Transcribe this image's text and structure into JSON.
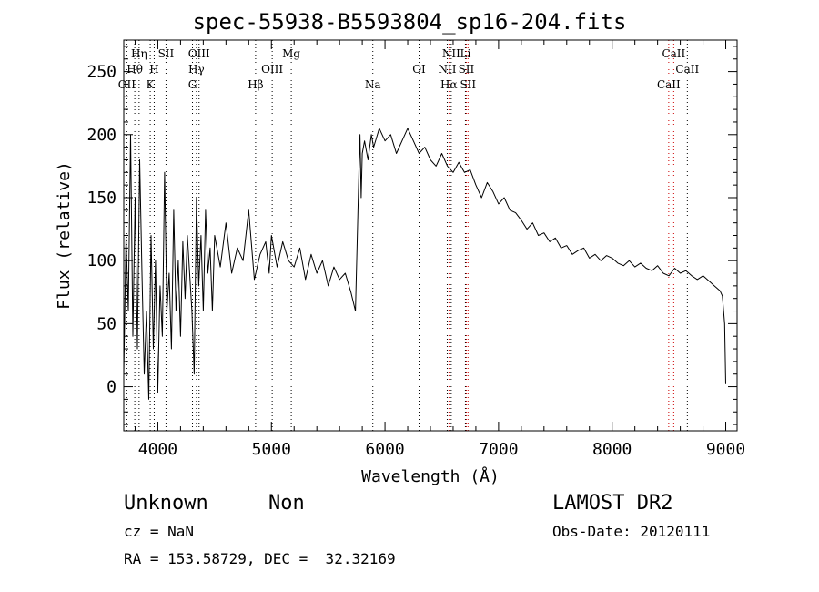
{
  "chart_data": {
    "type": "line",
    "title": "spec-55938-B5593804_sp16-204.fits",
    "xlabel": "Wavelength (Å)",
    "ylabel": "Flux (relative)",
    "xlim": [
      3700,
      9100
    ],
    "ylim": [
      -35,
      275
    ],
    "x_ticks": [
      4000,
      5000,
      6000,
      7000,
      8000,
      9000
    ],
    "y_ticks": [
      0,
      50,
      100,
      150,
      200,
      250
    ],
    "grid": false,
    "series": [
      {
        "x": [
          3700,
          3720,
          3740,
          3760,
          3780,
          3800,
          3820,
          3840,
          3860,
          3880,
          3900,
          3920,
          3940,
          3960,
          3980,
          4000,
          4020,
          4040,
          4060,
          4080,
          4100,
          4120,
          4140,
          4160,
          4180,
          4200,
          4220,
          4240,
          4260,
          4280,
          4300,
          4320,
          4340,
          4360,
          4380,
          4400,
          4420,
          4440,
          4460,
          4480,
          4500,
          4550,
          4600,
          4650,
          4700,
          4750,
          4800,
          4850,
          4900,
          4950,
          4980,
          5000,
          5050,
          5100,
          5150,
          5200,
          5250,
          5300,
          5350,
          5400,
          5450,
          5500,
          5550,
          5600,
          5650,
          5700,
          5740,
          5770,
          5780,
          5790,
          5800,
          5820,
          5850,
          5880,
          5900,
          5950,
          6000,
          6050,
          6100,
          6150,
          6200,
          6250,
          6300,
          6350,
          6400,
          6450,
          6500,
          6550,
          6600,
          6650,
          6700,
          6750,
          6800,
          6850,
          6900,
          6950,
          7000,
          7050,
          7100,
          7150,
          7200,
          7250,
          7300,
          7350,
          7400,
          7450,
          7500,
          7550,
          7600,
          7650,
          7700,
          7750,
          7800,
          7850,
          7900,
          7950,
          8000,
          8050,
          8100,
          8150,
          8200,
          8250,
          8300,
          8350,
          8400,
          8450,
          8500,
          8550,
          8600,
          8650,
          8700,
          8750,
          8800,
          8850,
          8900,
          8950,
          8970,
          8990,
          9000
        ],
        "y": [
          10,
          120,
          60,
          200,
          40,
          150,
          30,
          180,
          90,
          10,
          60,
          -10,
          120,
          30,
          100,
          -5,
          80,
          40,
          170,
          60,
          90,
          30,
          140,
          60,
          100,
          40,
          115,
          70,
          120,
          90,
          60,
          10,
          150,
          80,
          120,
          60,
          140,
          90,
          110,
          60,
          120,
          95,
          130,
          90,
          110,
          100,
          140,
          85,
          105,
          115,
          90,
          120,
          95,
          115,
          100,
          95,
          110,
          85,
          105,
          90,
          100,
          80,
          95,
          85,
          90,
          75,
          60,
          170,
          200,
          150,
          185,
          195,
          180,
          200,
          190,
          205,
          195,
          200,
          185,
          195,
          205,
          195,
          185,
          190,
          180,
          175,
          185,
          175,
          170,
          178,
          170,
          172,
          160,
          150,
          162,
          155,
          145,
          150,
          140,
          138,
          132,
          125,
          130,
          120,
          122,
          115,
          118,
          110,
          112,
          105,
          108,
          110,
          102,
          105,
          100,
          104,
          102,
          98,
          96,
          100,
          95,
          98,
          94,
          92,
          96,
          90,
          88,
          94,
          90,
          92,
          88,
          85,
          88,
          84,
          80,
          76,
          72,
          50,
          2
        ]
      }
    ],
    "line_labels": [
      {
        "text": "OII",
        "x": 3727,
        "row": 3
      },
      {
        "text": "Hη",
        "x": 3835,
        "row": 1
      },
      {
        "text": "Hθ",
        "x": 3797,
        "row": 2
      },
      {
        "text": "H",
        "x": 3968,
        "row": 2
      },
      {
        "text": "K",
        "x": 3933,
        "row": 3
      },
      {
        "text": "SII",
        "x": 4072,
        "row": 1
      },
      {
        "text": "OIII",
        "x": 4363,
        "row": 1
      },
      {
        "text": "Hγ",
        "x": 4340,
        "row": 2
      },
      {
        "text": "G",
        "x": 4305,
        "row": 3
      },
      {
        "text": "Hβ",
        "x": 4861,
        "row": 3
      },
      {
        "text": "OIII",
        "x": 5007,
        "row": 2
      },
      {
        "text": "Mg",
        "x": 5175,
        "row": 1
      },
      {
        "text": "Na",
        "x": 5893,
        "row": 3
      },
      {
        "text": "OI",
        "x": 6300,
        "row": 2
      },
      {
        "text": "NII",
        "x": 6583,
        "row": 1
      },
      {
        "text": "Li",
        "x": 6708,
        "row": 1
      },
      {
        "text": "NII",
        "x": 6548,
        "row": 2
      },
      {
        "text": "SII",
        "x": 6716,
        "row": 2
      },
      {
        "text": "Hα",
        "x": 6563,
        "row": 3
      },
      {
        "text": "SII",
        "x": 6731,
        "row": 3
      },
      {
        "text": "CaII",
        "x": 8542,
        "row": 1
      },
      {
        "text": "CaII",
        "x": 8662,
        "row": 2
      },
      {
        "text": "CaII",
        "x": 8498,
        "row": 3
      }
    ],
    "line_markers": [
      {
        "x": 3727,
        "color": "#000000"
      },
      {
        "x": 3797,
        "color": "#000000"
      },
      {
        "x": 3835,
        "color": "#000000"
      },
      {
        "x": 3933,
        "color": "#000000"
      },
      {
        "x": 3968,
        "color": "#000000"
      },
      {
        "x": 4072,
        "color": "#000000"
      },
      {
        "x": 4305,
        "color": "#000000"
      },
      {
        "x": 4340,
        "color": "#000000"
      },
      {
        "x": 4363,
        "color": "#000000"
      },
      {
        "x": 4861,
        "color": "#000000"
      },
      {
        "x": 5007,
        "color": "#000000"
      },
      {
        "x": 5175,
        "color": "#000000"
      },
      {
        "x": 5893,
        "color": "#000000"
      },
      {
        "x": 6300,
        "color": "#000000"
      },
      {
        "x": 6548,
        "color": "#000000"
      },
      {
        "x": 6563,
        "color": "#cc0000"
      },
      {
        "x": 6583,
        "color": "#000000"
      },
      {
        "x": 6708,
        "color": "#000000"
      },
      {
        "x": 6716,
        "color": "#cc0000"
      },
      {
        "x": 6731,
        "color": "#cc0000"
      },
      {
        "x": 8498,
        "color": "#cc0000"
      },
      {
        "x": 8542,
        "color": "#cc0000"
      },
      {
        "x": 8662,
        "color": "#000000"
      }
    ]
  },
  "info": {
    "class": "Unknown",
    "subclass": "Non",
    "survey": "LAMOST DR2",
    "redshift": "cz = NaN",
    "obs_date": "Obs-Date: 20120111",
    "coords": "RA = 153.58729, DEC =  32.32169"
  }
}
